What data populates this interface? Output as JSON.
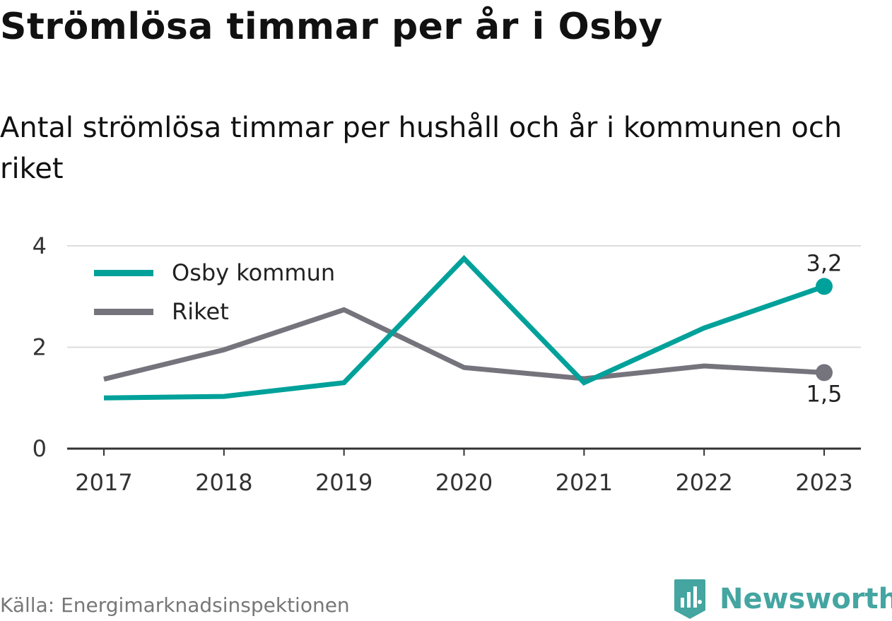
{
  "title": "Strömlösa timmar per år i Osby",
  "subtitle": "Antal strömlösa timmar per hushåll och år i kommunen och riket",
  "source": "Källa: Energimarknadsinspektionen",
  "brand": {
    "name": "Newsworthy",
    "icon": "newsworthy-logo-icon",
    "color": "#44a5a1"
  },
  "chart_data": {
    "type": "line",
    "categories": [
      "2017",
      "2018",
      "2019",
      "2020",
      "2021",
      "2022",
      "2023"
    ],
    "ylim": [
      0,
      4
    ],
    "yticks": [
      0,
      2,
      4
    ],
    "grid": true,
    "legend_position": "top-left",
    "series": [
      {
        "name": "Osby kommun",
        "color": "#00a19a",
        "values": [
          1.0,
          1.03,
          1.3,
          3.75,
          1.3,
          2.38,
          3.2
        ],
        "end_label": "3,2"
      },
      {
        "name": "Riket",
        "color": "#75747c",
        "values": [
          1.37,
          1.95,
          2.74,
          1.6,
          1.38,
          1.63,
          1.5
        ],
        "end_label": "1,5"
      }
    ]
  }
}
